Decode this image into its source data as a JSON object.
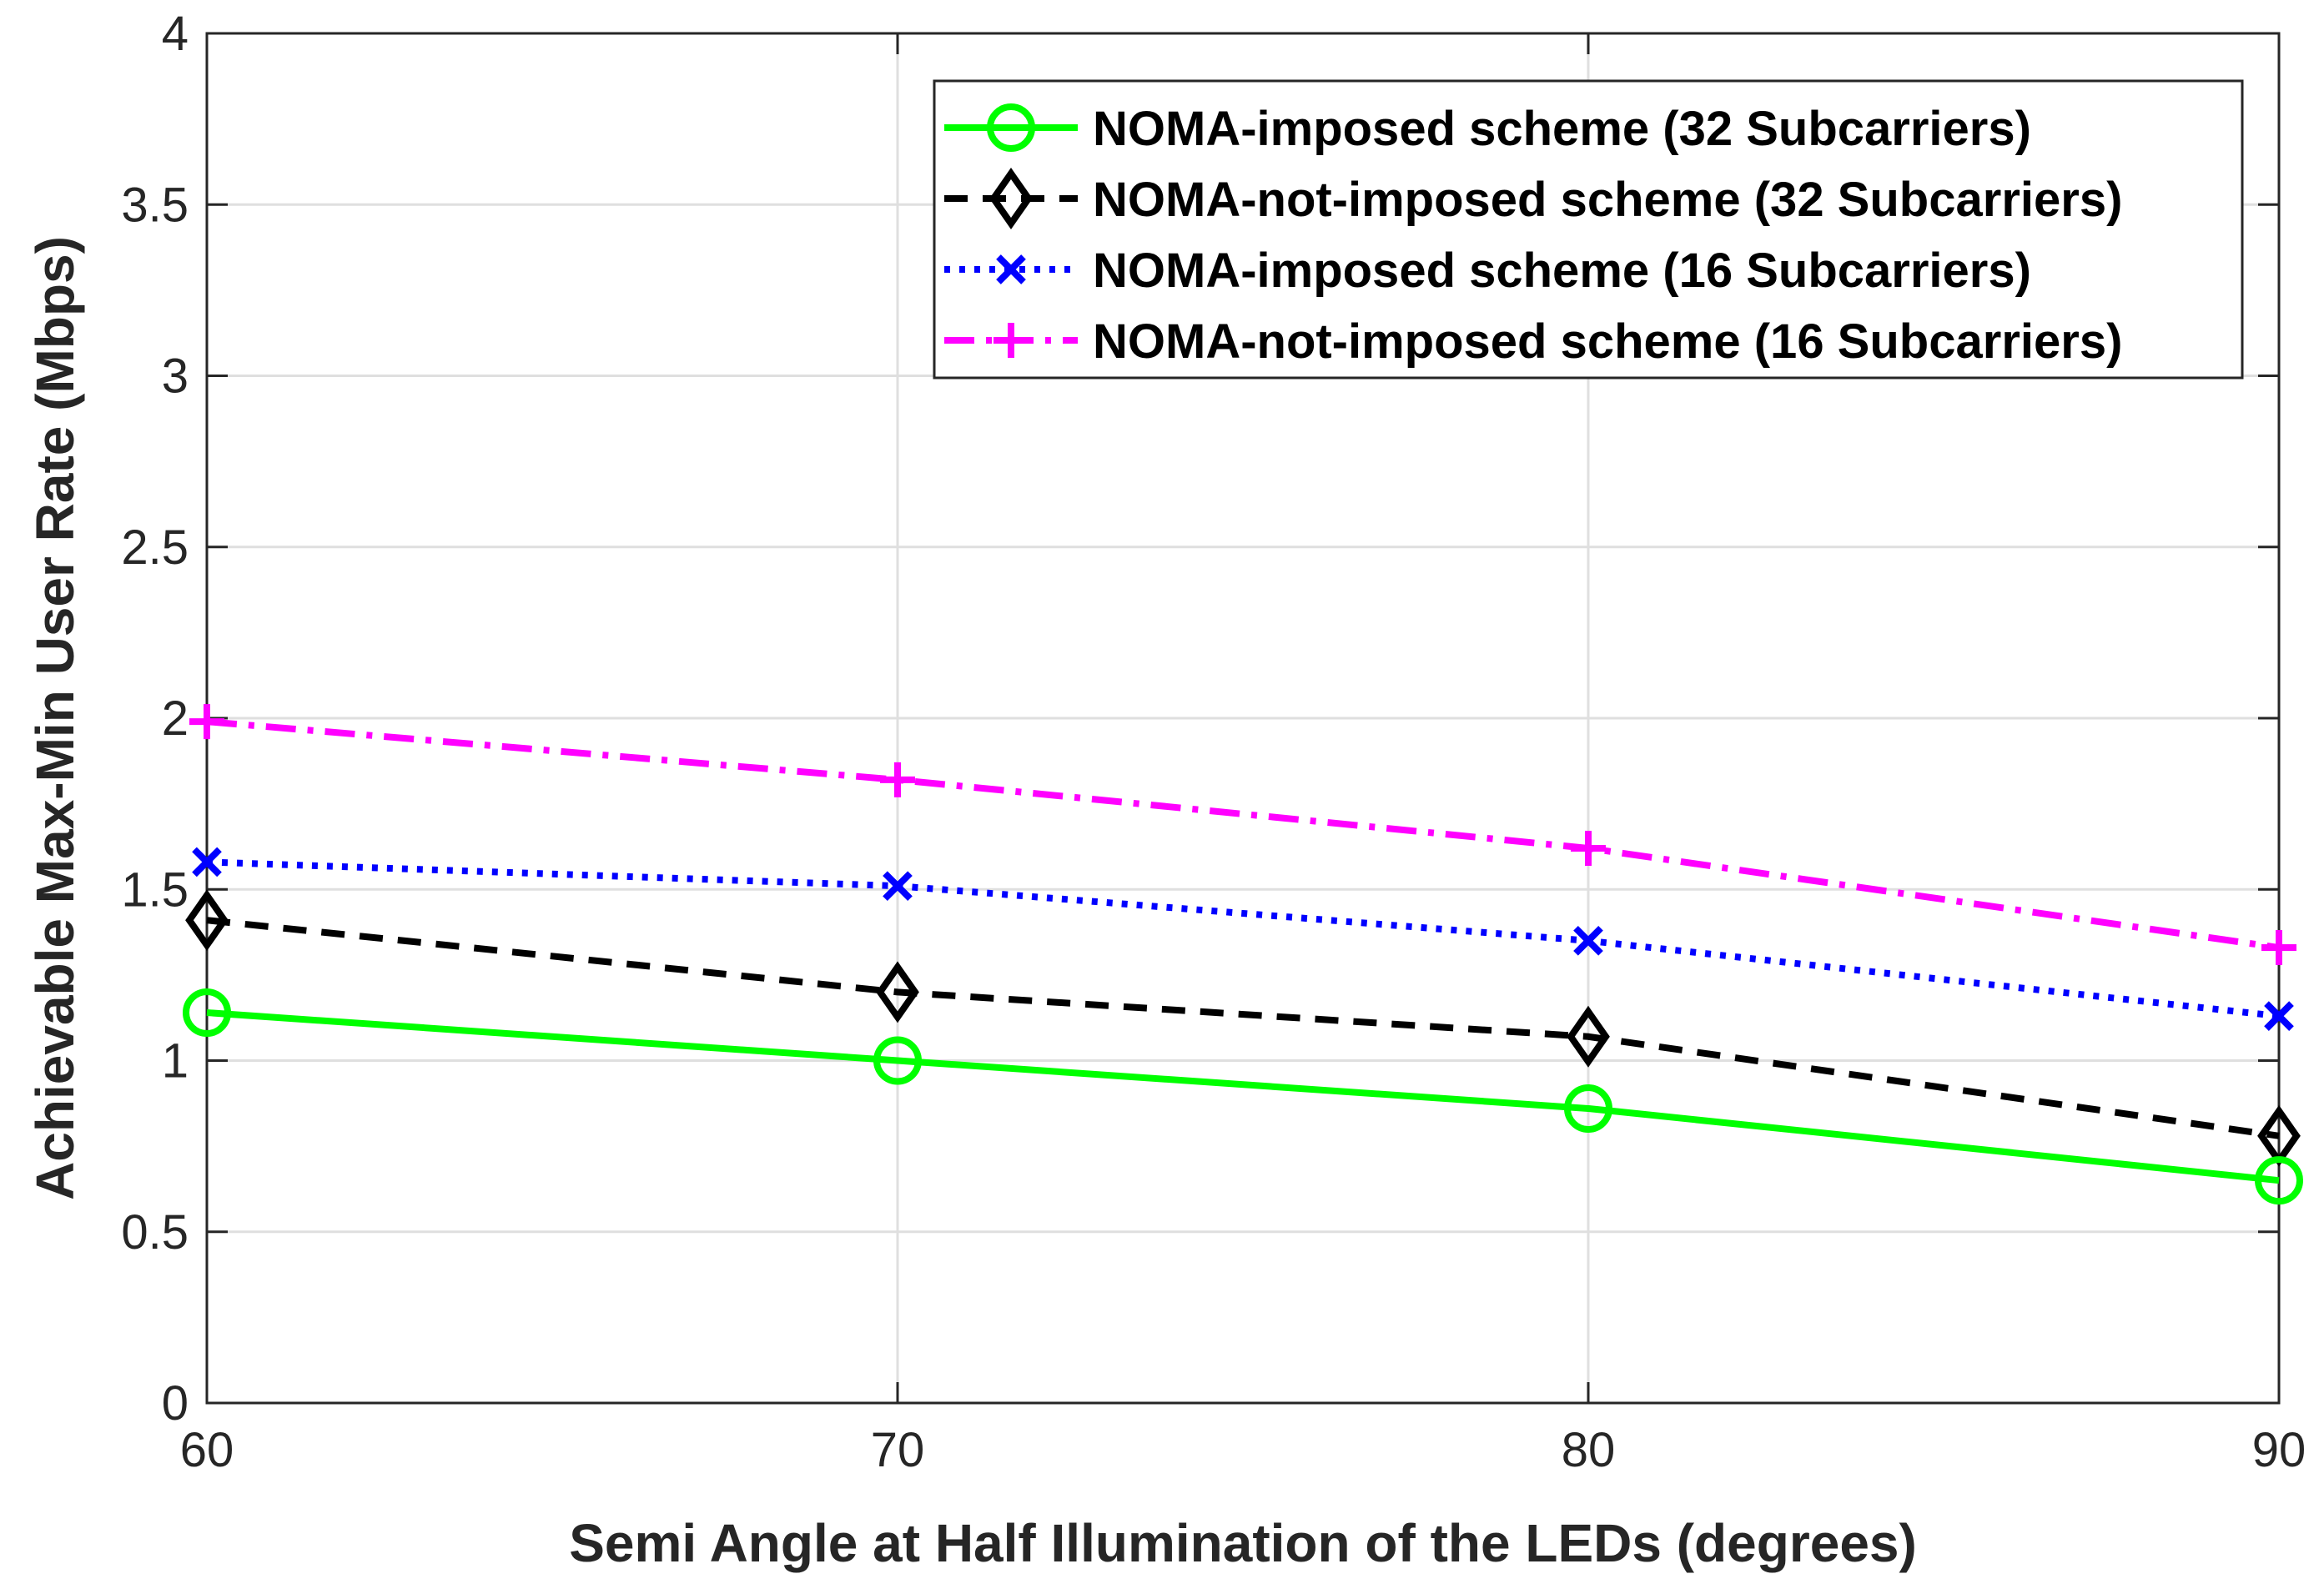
{
  "chart_data": {
    "type": "line",
    "xlabel": "Semi Angle at Half Illumination of the LEDs (degrees)",
    "ylabel": "Achievable Max-Min User Rate (Mbps)",
    "xlim": [
      60,
      90
    ],
    "ylim": [
      0,
      4
    ],
    "grid": true,
    "legend_position": "top-right",
    "x": [
      60,
      70,
      80,
      90
    ],
    "xticks": [
      60,
      70,
      80,
      90
    ],
    "xtick_labels": [
      "60",
      "70",
      "80",
      "90"
    ],
    "yticks": [
      0,
      0.5,
      1,
      1.5,
      2,
      2.5,
      3,
      3.5,
      4
    ],
    "ytick_labels": [
      "0",
      "0.5",
      "1",
      "1.5",
      "2",
      "2.5",
      "3",
      "3.5",
      "4"
    ],
    "series": [
      {
        "name": "NOMA-imposed scheme (32 Subcarriers)",
        "values": [
          1.14,
          1.0,
          0.86,
          0.65
        ],
        "color": "#00ff00",
        "line_style": "solid",
        "marker": "circle"
      },
      {
        "name": "NOMA-not-imposed scheme (32 Subcarriers)",
        "values": [
          1.41,
          1.2,
          1.07,
          0.78
        ],
        "color": "#000000",
        "line_style": "dashed",
        "marker": "diamond"
      },
      {
        "name": "NOMA-imposed scheme (16 Subcarriers)",
        "values": [
          1.58,
          1.51,
          1.35,
          1.13
        ],
        "color": "#0000ff",
        "line_style": "dotted",
        "marker": "x"
      },
      {
        "name": "NOMA-not-imposed scheme (16 Subcarriers)",
        "values": [
          1.99,
          1.82,
          1.62,
          1.33
        ],
        "color": "#ff00ff",
        "line_style": "dashdot",
        "marker": "plus"
      }
    ]
  }
}
